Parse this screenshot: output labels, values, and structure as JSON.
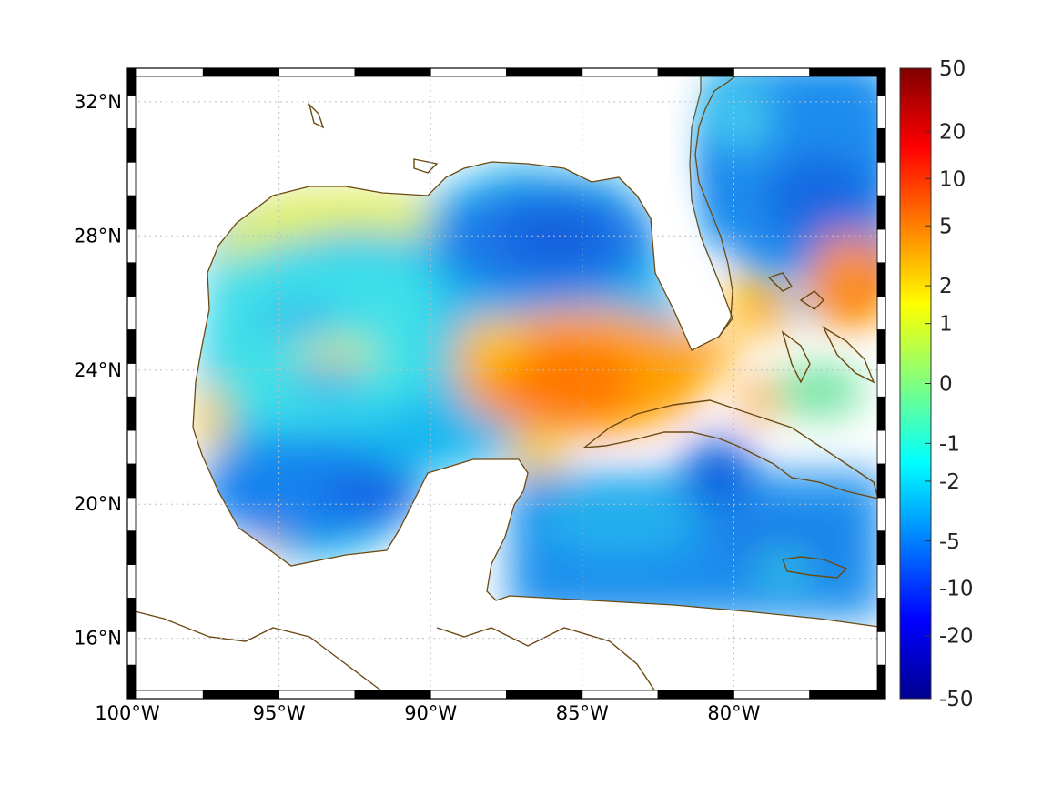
{
  "map": {
    "lon_range": [
      -100,
      -75
    ],
    "lat_range": [
      14.2,
      33
    ],
    "lon_ticks": [
      {
        "value": -100,
        "label": "100°W"
      },
      {
        "value": -95,
        "label": "95°W"
      },
      {
        "value": -90,
        "label": "90°W"
      },
      {
        "value": -85,
        "label": "85°W"
      },
      {
        "value": -80,
        "label": "80°W"
      }
    ],
    "lat_ticks": [
      {
        "value": 32,
        "label": "32°N"
      },
      {
        "value": 28,
        "label": "28°N"
      },
      {
        "value": 24,
        "label": "24°N"
      },
      {
        "value": 20,
        "label": "20°N"
      },
      {
        "value": 16,
        "label": "16°N"
      }
    ],
    "grid": true,
    "coastline_color": "#6b4a12",
    "land_color": "#ffffff",
    "frame_colors": [
      "#000000",
      "#ffffff"
    ]
  },
  "colorbar": {
    "labels": [
      "50",
      "20",
      "10",
      "5",
      "2",
      "1",
      "0",
      "-1",
      "-2",
      "-5",
      "-10",
      "-20",
      "-50"
    ],
    "colormap": "jet"
  }
}
